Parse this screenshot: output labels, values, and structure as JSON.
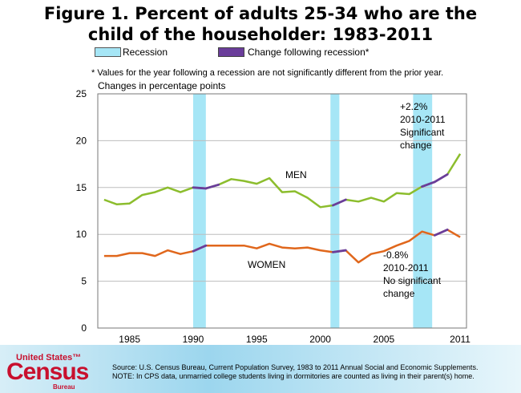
{
  "figure": {
    "title_line1": "Figure 1. Percent of adults 25-34 who are the",
    "title_line2": "child of the householder: 1983-2011"
  },
  "legend": {
    "recession_label": "Recession",
    "change_label": "Change following recession*"
  },
  "footnote": "* Values for the year following a recession are not significantly different from the prior year.",
  "ylabel": "Changes in percentage points",
  "annotations": {
    "men_line1": "+2.2%",
    "men_line2": "2010-2011",
    "men_line3": "Significant",
    "men_line4": "change",
    "women_line1": "-0.8%",
    "women_line2": "2010-2011",
    "women_line3": "No significant",
    "women_line4": "change"
  },
  "footer": {
    "logo_top": "United States™",
    "logo_main": "Census",
    "logo_sub": "Bureau",
    "source_line1": "Source: U.S. Census Bureau, Current Population Survey, 1983 to 2011 Annual Social and Economic Supplements.",
    "source_line2": "NOTE: In CPS data, unmarried college students living in dormitories are counted  as living in their parent(s) home."
  },
  "colors": {
    "men": "#8cbd2d",
    "women": "#e0671c",
    "change": "#6a3d9a",
    "recession": "#a6e6f6",
    "brand": "#c8102e"
  },
  "chart_data": {
    "type": "line",
    "x": [
      1983,
      1984,
      1985,
      1986,
      1987,
      1988,
      1989,
      1990,
      1991,
      1992,
      1993,
      1994,
      1995,
      1996,
      1997,
      1998,
      1999,
      2000,
      2001,
      2002,
      2003,
      2004,
      2005,
      2006,
      2007,
      2008,
      2009,
      2010,
      2011
    ],
    "series": [
      {
        "name": "MEN",
        "values": [
          13.7,
          13.2,
          13.3,
          14.2,
          14.5,
          15.0,
          14.5,
          15.0,
          14.9,
          15.3,
          15.9,
          15.7,
          15.4,
          16.0,
          14.5,
          14.6,
          13.9,
          12.9,
          13.1,
          13.7,
          13.5,
          13.9,
          13.5,
          14.4,
          14.3,
          15.1,
          15.6,
          16.4,
          18.6
        ],
        "change_segments": [
          [
            1990,
            1991
          ],
          [
            1991,
            1992
          ],
          [
            2001,
            2002
          ],
          [
            2008,
            2009
          ],
          [
            2009,
            2010
          ]
        ]
      },
      {
        "name": "WOMEN",
        "values": [
          7.7,
          7.7,
          8.0,
          8.0,
          7.7,
          8.3,
          7.9,
          8.2,
          8.8,
          8.8,
          8.8,
          8.8,
          8.5,
          9.0,
          8.6,
          8.5,
          8.6,
          8.3,
          8.1,
          8.3,
          7.0,
          7.9,
          8.2,
          8.8,
          9.3,
          10.3,
          9.9,
          10.5,
          9.7
        ],
        "change_segments": [
          [
            1990,
            1991
          ],
          [
            2001,
            2002
          ],
          [
            2009,
            2010
          ]
        ]
      }
    ],
    "recessions": [
      [
        1990,
        1991
      ],
      [
        2000.8,
        2001.5
      ],
      [
        2007.3,
        2008.8
      ]
    ],
    "series_labels": [
      "MEN",
      "WOMEN"
    ],
    "xticks": [
      1985,
      1990,
      1995,
      2000,
      2005,
      2011
    ],
    "yticks": [
      0,
      5,
      10,
      15,
      20,
      25
    ],
    "xlim": [
      1982.5,
      2011.5
    ],
    "ylim": [
      0,
      25
    ],
    "grid": true
  }
}
